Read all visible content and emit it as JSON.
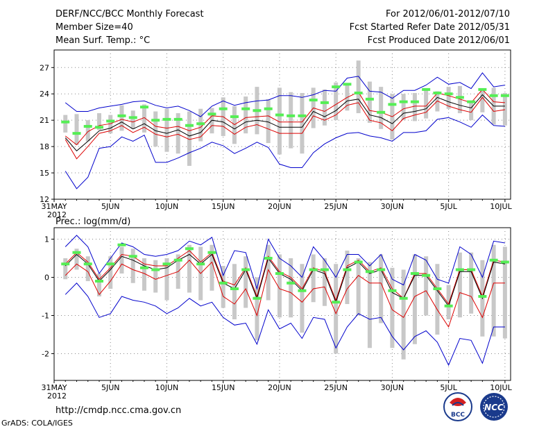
{
  "header": {
    "title": "DERF/NCC/BCC Monthly Forecast",
    "member_size": "Member Size=40",
    "variable": "Mean Surf. Temp.: °C",
    "forecast_period": "For 2012/06/01-2012/07/10",
    "start_date": "Fcst Started Refer Date 2012/05/31",
    "produced_date": "Fcst Produced Date 2012/06/01"
  },
  "footer": {
    "url": "http://cmdp.ncc.cma.gov.cn",
    "credit": "GrADS: COLA/IGES",
    "logo_bcc": "BCC",
    "logo_ncc": "NCC"
  },
  "colors": {
    "ensemble_bar": "#c8c8c8",
    "envelope": "#0000cc",
    "quartile": "#dd0000",
    "median": "#000000",
    "obs_dash": "#55ee55",
    "grid": "#888888"
  },
  "chart_data": [
    {
      "type": "line",
      "title": "Mean Surf. Temp.: °C",
      "xlabel": "",
      "ylabel": "°C",
      "ylim": [
        12,
        29
      ],
      "yticks": [
        12,
        15,
        18,
        21,
        24,
        27
      ],
      "x_ticks": [
        {
          "day": 0,
          "label": "31MAY"
        },
        {
          "day": 5,
          "label": "5JUN"
        },
        {
          "day": 10,
          "label": "10JUN"
        },
        {
          "day": 15,
          "label": "15JUN"
        },
        {
          "day": 20,
          "label": "20JUN"
        },
        {
          "day": 25,
          "label": "25JUN"
        },
        {
          "day": 30,
          "label": "30JUN"
        },
        {
          "day": 35,
          "label": "5JUL"
        },
        {
          "day": 40,
          "label": "10JUL"
        }
      ],
      "year_label": "2012",
      "days": [
        1,
        2,
        3,
        4,
        5,
        6,
        7,
        8,
        9,
        10,
        11,
        12,
        13,
        14,
        15,
        16,
        17,
        18,
        19,
        20,
        21,
        22,
        23,
        24,
        25,
        26,
        27,
        28,
        29,
        30,
        31,
        32,
        33,
        34,
        35,
        36,
        37,
        38,
        39,
        40
      ],
      "series": [
        {
          "name": "ensemble_max",
          "values": [
            23.0,
            22.0,
            22.0,
            22.4,
            22.6,
            22.8,
            23.1,
            23.2,
            22.7,
            22.4,
            22.6,
            22.1,
            21.4,
            22.6,
            23.2,
            22.7,
            23.0,
            23.2,
            23.3,
            23.8,
            23.8,
            23.6,
            23.9,
            24.4,
            24.3,
            25.8,
            26.0,
            24.3,
            24.2,
            23.5,
            24.4,
            24.4,
            25.0,
            25.9,
            25.1,
            25.3,
            24.6,
            26.4,
            24.8,
            25.0
          ]
        },
        {
          "name": "quartile_upper",
          "values": [
            19.2,
            18.2,
            19.7,
            20.4,
            20.6,
            21.1,
            20.8,
            21.3,
            20.3,
            20.1,
            20.3,
            19.8,
            20.2,
            21.5,
            21.4,
            20.5,
            21.3,
            21.4,
            21.5,
            20.8,
            20.8,
            20.8,
            22.4,
            22.0,
            22.8,
            23.6,
            24.2,
            22.1,
            21.9,
            21.4,
            22.3,
            22.6,
            22.6,
            24.1,
            23.8,
            23.4,
            23.0,
            24.5,
            23.1,
            23.0
          ]
        },
        {
          "name": "median",
          "values": [
            19.0,
            17.5,
            18.6,
            19.8,
            20.1,
            20.8,
            20.0,
            20.6,
            19.8,
            19.5,
            19.9,
            19.2,
            19.6,
            21.0,
            20.8,
            20.0,
            20.8,
            21.0,
            20.8,
            20.2,
            20.2,
            20.2,
            22.0,
            21.4,
            22.1,
            23.2,
            23.4,
            21.6,
            21.3,
            20.6,
            21.8,
            22.0,
            22.3,
            23.6,
            23.1,
            22.7,
            22.4,
            23.9,
            22.6,
            22.6
          ]
        },
        {
          "name": "quartile_lower",
          "values": [
            18.8,
            16.6,
            18.0,
            19.5,
            19.8,
            20.4,
            19.6,
            20.2,
            19.4,
            19.1,
            19.4,
            18.8,
            19.1,
            20.4,
            20.3,
            19.4,
            20.2,
            20.5,
            20.0,
            19.5,
            19.5,
            19.5,
            21.5,
            21.0,
            21.6,
            22.7,
            23.0,
            21.0,
            20.7,
            19.8,
            21.2,
            21.6,
            21.9,
            23.2,
            22.6,
            22.2,
            21.9,
            23.6,
            22.0,
            22.2
          ]
        },
        {
          "name": "ensemble_min",
          "values": [
            15.2,
            13.2,
            14.5,
            17.8,
            18.0,
            19.1,
            18.6,
            19.3,
            16.2,
            16.2,
            16.7,
            17.3,
            17.8,
            18.5,
            18.1,
            17.2,
            17.8,
            18.5,
            17.9,
            16.0,
            15.6,
            15.6,
            17.3,
            18.3,
            19.0,
            19.5,
            19.6,
            19.2,
            19.0,
            18.6,
            19.6,
            19.6,
            19.8,
            21.1,
            21.3,
            20.8,
            20.2,
            21.6,
            20.4,
            20.3
          ]
        },
        {
          "name": "obs_dash",
          "values": [
            20.8,
            19.5,
            20.3,
            20.2,
            20.9,
            21.5,
            21.3,
            22.5,
            21.0,
            21.1,
            21.1,
            20.4,
            20.6,
            21.7,
            22.3,
            21.4,
            22.3,
            22.1,
            22.3,
            21.6,
            21.5,
            21.5,
            23.3,
            23.0,
            24.8,
            25.1,
            24.1,
            23.4,
            21.9,
            22.8,
            23.1,
            23.1,
            24.5,
            24.1,
            24.0,
            23.6,
            23.1,
            24.5,
            23.8,
            23.8
          ]
        },
        {
          "name": "bar_top",
          "values": [
            21.6,
            21.7,
            21.0,
            21.8,
            21.6,
            22.7,
            22.1,
            22.8,
            22.0,
            22.3,
            21.8,
            22.0,
            22.3,
            22.4,
            23.6,
            22.6,
            23.7,
            24.8,
            23.4,
            24.7,
            24.2,
            24.1,
            24.7,
            24.5,
            25.3,
            25.2,
            27.8,
            25.4,
            24.8,
            24.0,
            24.0,
            24.1,
            24.6,
            24.3,
            24.8,
            24.9,
            23.1,
            24.6,
            24.7,
            24.1
          ]
        },
        {
          "name": "bar_bottom",
          "values": [
            19.6,
            18.2,
            18.6,
            19.9,
            19.5,
            19.8,
            20.0,
            19.6,
            18.0,
            17.4,
            17.2,
            15.8,
            18.6,
            19.5,
            19.2,
            18.3,
            19.5,
            19.4,
            18.4,
            17.1,
            17.8,
            17.2,
            20.1,
            20.4,
            21.0,
            22.1,
            21.8,
            20.7,
            20.0,
            18.8,
            21.0,
            20.9,
            21.2,
            22.0,
            22.3,
            21.8,
            21.0,
            21.9,
            20.5,
            20.4
          ]
        }
      ]
    },
    {
      "type": "line",
      "title": "Prec.: log(mm/d)",
      "xlabel": "",
      "ylabel": "log(mm/d)",
      "ylim": [
        -2.7,
        1.3
      ],
      "yticks": [
        -2,
        -1,
        0,
        1
      ],
      "x_ticks": [
        {
          "day": 0,
          "label": "31MAY"
        },
        {
          "day": 5,
          "label": "5JUN"
        },
        {
          "day": 10,
          "label": "10JUN"
        },
        {
          "day": 15,
          "label": "15JUN"
        },
        {
          "day": 20,
          "label": "20JUN"
        },
        {
          "day": 25,
          "label": "25JUN"
        },
        {
          "day": 30,
          "label": "30JUN"
        },
        {
          "day": 35,
          "label": "5JUL"
        },
        {
          "day": 40,
          "label": "10JUL"
        }
      ],
      "year_label": "2012",
      "days": [
        1,
        2,
        3,
        4,
        5,
        6,
        7,
        8,
        9,
        10,
        11,
        12,
        13,
        14,
        15,
        16,
        17,
        18,
        19,
        20,
        21,
        22,
        23,
        24,
        25,
        26,
        27,
        28,
        29,
        30,
        31,
        32,
        33,
        34,
        35,
        36,
        37,
        38,
        39,
        40
      ],
      "series": [
        {
          "name": "ensemble_max",
          "values": [
            0.8,
            1.1,
            0.8,
            0.1,
            0.5,
            0.9,
            0.8,
            0.6,
            0.55,
            0.6,
            0.7,
            0.95,
            0.85,
            1.05,
            0.05,
            0.7,
            0.65,
            -0.3,
            1.0,
            0.5,
            0.3,
            0.0,
            0.8,
            0.45,
            0.0,
            0.6,
            0.6,
            0.3,
            0.6,
            -0.05,
            -0.2,
            0.6,
            0.45,
            -0.05,
            -0.15,
            0.8,
            0.6,
            0.0,
            0.95,
            0.9
          ]
        },
        {
          "name": "quartile_upper",
          "values": [
            0.35,
            0.65,
            0.4,
            -0.05,
            0.25,
            0.6,
            0.55,
            0.35,
            0.3,
            0.3,
            0.5,
            0.7,
            0.4,
            0.65,
            -0.1,
            -0.2,
            0.25,
            -0.5,
            0.55,
            0.15,
            0.0,
            -0.3,
            0.25,
            0.15,
            -0.6,
            0.3,
            0.45,
            0.15,
            0.25,
            -0.3,
            -0.55,
            0.1,
            0.1,
            -0.3,
            -0.7,
            0.2,
            0.2,
            -0.5,
            0.45,
            0.4
          ]
        },
        {
          "name": "median",
          "values": [
            0.3,
            0.6,
            0.35,
            -0.1,
            0.2,
            0.55,
            0.45,
            0.3,
            0.2,
            0.25,
            0.45,
            0.6,
            0.35,
            0.6,
            -0.15,
            -0.3,
            0.2,
            -0.55,
            0.5,
            0.1,
            -0.05,
            -0.35,
            0.2,
            0.1,
            -0.65,
            0.25,
            0.4,
            0.1,
            0.2,
            -0.4,
            -0.55,
            0.05,
            0.05,
            -0.35,
            -0.75,
            0.15,
            0.15,
            -0.55,
            0.4,
            0.35
          ]
        },
        {
          "name": "quartile_lower",
          "values": [
            0.05,
            0.35,
            0.15,
            -0.45,
            -0.1,
            0.35,
            0.2,
            0.1,
            -0.05,
            0.05,
            0.15,
            0.45,
            0.1,
            0.4,
            -0.5,
            -0.7,
            -0.3,
            -1.0,
            0.2,
            -0.3,
            -0.4,
            -0.65,
            -0.3,
            -0.25,
            -0.95,
            -0.3,
            0.05,
            -0.15,
            -0.15,
            -0.85,
            -1.05,
            -0.5,
            -0.35,
            -0.85,
            -1.3,
            -0.4,
            -0.5,
            -1.05,
            -0.15,
            -0.15
          ]
        },
        {
          "name": "ensemble_min",
          "values": [
            -0.45,
            -0.15,
            -0.5,
            -1.05,
            -0.95,
            -0.5,
            -0.6,
            -0.65,
            -0.75,
            -0.95,
            -0.8,
            -0.55,
            -0.75,
            -0.65,
            -1.05,
            -1.25,
            -1.2,
            -1.75,
            -0.85,
            -1.35,
            -1.2,
            -1.6,
            -1.05,
            -1.1,
            -1.85,
            -1.3,
            -0.95,
            -1.1,
            -1.05,
            -1.55,
            -1.9,
            -1.55,
            -1.4,
            -1.7,
            -2.3,
            -1.6,
            -1.65,
            -2.25,
            -1.3,
            -1.3
          ]
        },
        {
          "name": "obs_dash",
          "values": [
            0.35,
            0.65,
            0.35,
            -0.1,
            0.35,
            0.85,
            0.55,
            0.25,
            0.2,
            0.35,
            0.45,
            0.75,
            0.35,
            0.65,
            -0.15,
            -0.3,
            0.2,
            -0.55,
            0.5,
            0.1,
            -0.15,
            -0.35,
            0.2,
            0.2,
            -0.65,
            0.2,
            0.4,
            0.15,
            0.2,
            -0.35,
            -0.55,
            0.1,
            0.05,
            -0.3,
            -0.75,
            0.2,
            0.2,
            -0.5,
            0.45,
            0.4
          ]
        },
        {
          "name": "bar_top",
          "values": [
            0.5,
            0.75,
            0.55,
            0.1,
            0.55,
            0.8,
            0.75,
            0.5,
            0.45,
            0.5,
            0.6,
            0.85,
            0.8,
            0.85,
            0.3,
            0.35,
            0.55,
            0.0,
            0.85,
            0.6,
            0.5,
            0.35,
            0.6,
            0.5,
            0.35,
            0.7,
            0.5,
            0.4,
            0.6,
            0.25,
            0.2,
            0.6,
            0.55,
            0.35,
            -0.2,
            0.65,
            0.65,
            0.45,
            0.85,
            0.8
          ]
        },
        {
          "name": "bar_bottom",
          "values": [
            -0.05,
            0.2,
            -0.1,
            -0.5,
            -0.3,
            0.1,
            -0.15,
            -0.35,
            -0.4,
            -0.6,
            -0.3,
            -0.4,
            -0.6,
            -0.35,
            -0.8,
            -1.1,
            -0.8,
            -1.65,
            -0.6,
            -1.05,
            -1.05,
            -1.45,
            -0.65,
            -0.75,
            -2.0,
            -0.7,
            -1.0,
            -1.85,
            -1.2,
            -1.85,
            -2.15,
            -1.75,
            -1.0,
            -1.5,
            -1.1,
            -1.05,
            -0.95,
            -1.55,
            -1.55,
            -1.6
          ]
        }
      ]
    }
  ]
}
